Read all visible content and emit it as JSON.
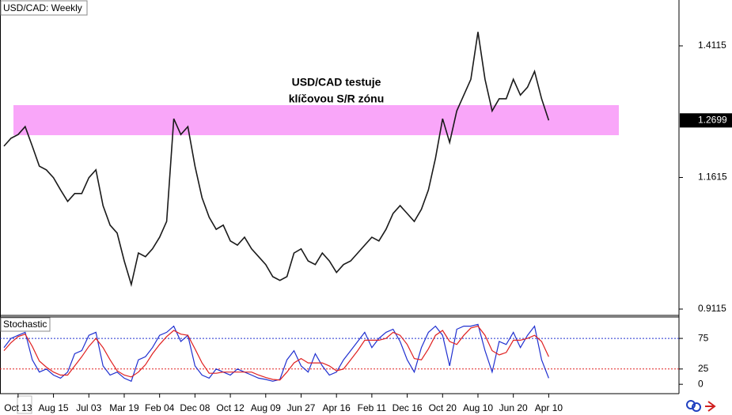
{
  "chart_data": [
    {
      "type": "line",
      "title": "USD/CAD: Weekly",
      "annotation": [
        "USD/CAD testuje",
        "klíčovou S/R zónu"
      ],
      "categories": [
        null,
        null,
        "Oct 13",
        null,
        null,
        null,
        null,
        "Aug 15",
        null,
        null,
        null,
        null,
        "Jul 03",
        null,
        null,
        null,
        null,
        "Mar 19",
        null,
        null,
        null,
        null,
        "Feb 04",
        null,
        null,
        null,
        null,
        "Dec 08",
        null,
        null,
        null,
        null,
        "Oct 12",
        null,
        null,
        null,
        null,
        "Aug 09",
        null,
        null,
        null,
        null,
        "Jun 27",
        null,
        null,
        null,
        null,
        "Apr 16",
        null,
        null,
        null,
        null,
        "Feb 11",
        null,
        null,
        null,
        null,
        "Dec 16",
        null,
        null,
        null,
        null,
        "Oct 20",
        null,
        null,
        null,
        null,
        "Aug 10",
        null,
        null,
        null,
        null,
        "Jun 20",
        null,
        null,
        null,
        null,
        "Apr 10"
      ],
      "series": [
        {
          "color": "#1a1a1a",
          "values": [
            1.221,
            1.236,
            1.243,
            1.258,
            1.221,
            1.183,
            1.176,
            1.161,
            1.138,
            1.116,
            1.131,
            1.131,
            1.161,
            1.176,
            1.108,
            1.071,
            1.056,
            1.003,
            0.958,
            1.018,
            1.011,
            1.026,
            1.048,
            1.078,
            1.273,
            1.243,
            1.258,
            1.183,
            1.123,
            1.086,
            1.063,
            1.071,
            1.041,
            1.033,
            1.048,
            1.026,
            1.011,
            0.996,
            0.973,
            0.966,
            0.973,
            1.018,
            1.026,
            1.003,
            0.996,
            1.018,
            1.003,
            0.981,
            0.996,
            1.003,
            1.018,
            1.033,
            1.048,
            1.041,
            1.063,
            1.093,
            1.108,
            1.093,
            1.078,
            1.101,
            1.138,
            1.198,
            1.273,
            1.228,
            1.288,
            1.318,
            1.348,
            1.438,
            1.348,
            1.288,
            1.311,
            1.311,
            1.348,
            1.318,
            1.333,
            1.363,
            1.311,
            1.27
          ]
        }
      ],
      "zone": [
        1.2418,
        1.2989
      ],
      "zone_color": "#f9a6f9",
      "current_price": 1.2699,
      "ylim": [
        0.901,
        1.4986
      ],
      "yticks": [
        1.4115,
        1.1615,
        0.9115
      ]
    },
    {
      "type": "line",
      "title": "Stochastic",
      "series": [
        {
          "color": "#2030d0",
          "values": [
            60,
            75,
            80,
            85,
            40,
            20,
            25,
            15,
            10,
            20,
            50,
            55,
            80,
            85,
            30,
            15,
            20,
            10,
            5,
            40,
            45,
            60,
            80,
            85,
            95,
            70,
            80,
            30,
            15,
            10,
            25,
            20,
            15,
            25,
            20,
            15,
            10,
            8,
            5,
            8,
            40,
            55,
            30,
            20,
            50,
            30,
            15,
            20,
            40,
            55,
            70,
            85,
            60,
            75,
            85,
            90,
            70,
            40,
            20,
            60,
            85,
            95,
            80,
            30,
            90,
            95,
            95,
            98,
            55,
            20,
            70,
            65,
            85,
            60,
            80,
            95,
            40,
            10
          ]
        },
        {
          "color": "#e02020",
          "values": [
            55,
            68,
            78,
            82,
            62,
            38,
            28,
            20,
            15,
            15,
            30,
            45,
            62,
            75,
            60,
            40,
            22,
            15,
            12,
            20,
            32,
            50,
            65,
            78,
            88,
            82,
            80,
            58,
            35,
            18,
            18,
            20,
            20,
            20,
            20,
            20,
            15,
            11,
            8,
            7,
            20,
            35,
            42,
            35,
            35,
            35,
            30,
            22,
            25,
            40,
            55,
            72,
            72,
            72,
            75,
            85,
            80,
            65,
            42,
            40,
            58,
            80,
            88,
            70,
            65,
            80,
            92,
            95,
            80,
            55,
            48,
            52,
            72,
            72,
            75,
            80,
            70,
            45
          ]
        }
      ],
      "levels": [
        {
          "value": 75,
          "color": "#2030d0"
        },
        {
          "value": 25,
          "color": "#e02020"
        }
      ],
      "ylim": [
        -14,
        110
      ],
      "yticks": [
        75,
        25,
        0
      ]
    }
  ]
}
